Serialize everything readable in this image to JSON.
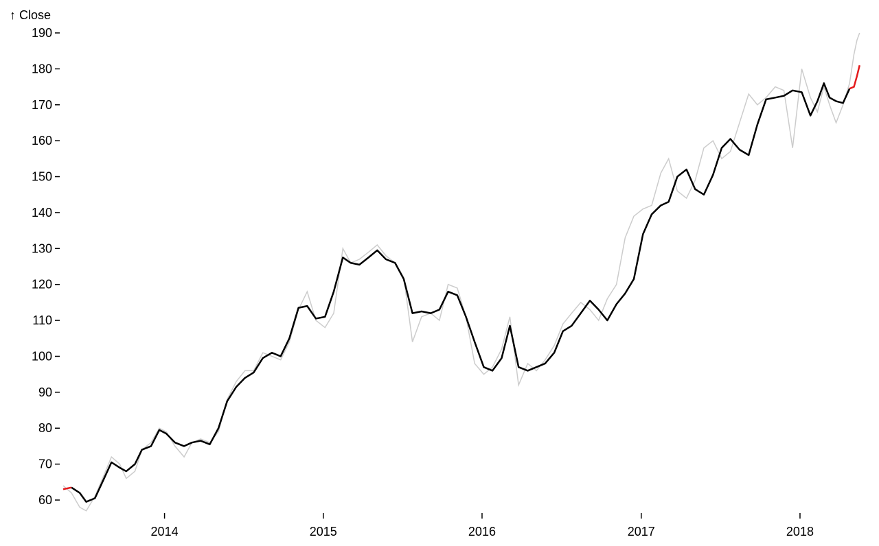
{
  "chart_data": {
    "type": "line",
    "ylabel": "↑ Close",
    "ylim": [
      57,
      190
    ],
    "xlim": [
      "2013-05-13",
      "2018-05-20"
    ],
    "y_ticks": [
      60,
      70,
      80,
      90,
      100,
      110,
      120,
      130,
      140,
      150,
      160,
      170,
      180,
      190
    ],
    "x_ticks": [
      "2014",
      "2015",
      "2016",
      "2017",
      "2018"
    ],
    "x_tick_dates": [
      "2014-01-01",
      "2015-01-01",
      "2016-01-01",
      "2017-01-01",
      "2018-01-01"
    ],
    "grid": false,
    "colors": {
      "raw": "#cccccc",
      "smoothed": "#000000",
      "edge": "#e41a1c"
    },
    "series": [
      {
        "role": "raw",
        "x": [
          "2013-05-13",
          "2013-06-01",
          "2013-06-20",
          "2013-07-05",
          "2013-07-25",
          "2013-08-15",
          "2013-09-01",
          "2013-09-20",
          "2013-10-05",
          "2013-10-25",
          "2013-11-10",
          "2013-12-01",
          "2013-12-20",
          "2014-01-05",
          "2014-01-25",
          "2014-02-15",
          "2014-03-05",
          "2014-03-25",
          "2014-04-15",
          "2014-05-05",
          "2014-05-25",
          "2014-06-15",
          "2014-07-05",
          "2014-07-25",
          "2014-08-15",
          "2014-09-05",
          "2014-09-25",
          "2014-10-15",
          "2014-11-05",
          "2014-11-25",
          "2014-12-15",
          "2015-01-05",
          "2015-01-25",
          "2015-02-15",
          "2015-03-05",
          "2015-03-25",
          "2015-04-15",
          "2015-05-05",
          "2015-05-25",
          "2015-06-15",
          "2015-07-05",
          "2015-07-25",
          "2015-08-15",
          "2015-09-05",
          "2015-09-25",
          "2015-10-15",
          "2015-11-05",
          "2015-11-25",
          "2015-12-15",
          "2016-01-05",
          "2016-01-25",
          "2016-02-15",
          "2016-03-05",
          "2016-03-25",
          "2016-04-15",
          "2016-05-05",
          "2016-05-25",
          "2016-06-15",
          "2016-07-05",
          "2016-07-25",
          "2016-08-15",
          "2016-09-05",
          "2016-09-25",
          "2016-10-15",
          "2016-11-05",
          "2016-11-25",
          "2016-12-15",
          "2017-01-05",
          "2017-01-25",
          "2017-02-15",
          "2017-03-05",
          "2017-03-25",
          "2017-04-15",
          "2017-05-05",
          "2017-05-25",
          "2017-06-15",
          "2017-07-05",
          "2017-07-25",
          "2017-08-15",
          "2017-09-05",
          "2017-09-25",
          "2017-10-15",
          "2017-11-05",
          "2017-11-25",
          "2017-12-15",
          "2018-01-05",
          "2018-01-25",
          "2018-02-10",
          "2018-02-25",
          "2018-03-10",
          "2018-03-25",
          "2018-04-10",
          "2018-04-25",
          "2018-05-05",
          "2018-05-12",
          "2018-05-18"
        ],
        "y": [
          64,
          62,
          58,
          57,
          61,
          67,
          72,
          70,
          66,
          68,
          74,
          76,
          80,
          79,
          75,
          72,
          76,
          77,
          76,
          79,
          88,
          93,
          96,
          96,
          101,
          100,
          99,
          104,
          113,
          118,
          110,
          108,
          112,
          130,
          126,
          127,
          129,
          131,
          128,
          126,
          122,
          104,
          111,
          112,
          110,
          120,
          119,
          111,
          98,
          95,
          97,
          102,
          111,
          92,
          98,
          96,
          99,
          103,
          109,
          112,
          115,
          113,
          110,
          116,
          120,
          133,
          139,
          141,
          142,
          151,
          155,
          146,
          144,
          149,
          158,
          160,
          155,
          157,
          165,
          173,
          170,
          172,
          175,
          174,
          158,
          180,
          172,
          168,
          175,
          170,
          165,
          170,
          176,
          184,
          188,
          190
        ]
      },
      {
        "role": "smoothed",
        "x": [
          "2013-05-13",
          "2013-06-01",
          "2013-06-20",
          "2013-07-05",
          "2013-07-25",
          "2013-08-15",
          "2013-09-01",
          "2013-09-20",
          "2013-10-05",
          "2013-10-25",
          "2013-11-10",
          "2013-12-01",
          "2013-12-20",
          "2014-01-05",
          "2014-01-25",
          "2014-02-15",
          "2014-03-05",
          "2014-03-25",
          "2014-04-15",
          "2014-05-05",
          "2014-05-25",
          "2014-06-15",
          "2014-07-05",
          "2014-07-25",
          "2014-08-15",
          "2014-09-05",
          "2014-09-25",
          "2014-10-15",
          "2014-11-05",
          "2014-11-25",
          "2014-12-15",
          "2015-01-05",
          "2015-01-25",
          "2015-02-15",
          "2015-03-05",
          "2015-03-25",
          "2015-04-15",
          "2015-05-05",
          "2015-05-25",
          "2015-06-15",
          "2015-07-05",
          "2015-07-25",
          "2015-08-15",
          "2015-09-05",
          "2015-09-25",
          "2015-10-15",
          "2015-11-05",
          "2015-11-25",
          "2015-12-15",
          "2016-01-05",
          "2016-01-25",
          "2016-02-15",
          "2016-03-05",
          "2016-03-25",
          "2016-04-15",
          "2016-05-05",
          "2016-05-25",
          "2016-06-15",
          "2016-07-05",
          "2016-07-25",
          "2016-08-15",
          "2016-09-05",
          "2016-09-25",
          "2016-10-15",
          "2016-11-05",
          "2016-11-25",
          "2016-12-15",
          "2017-01-05",
          "2017-01-25",
          "2017-02-15",
          "2017-03-05",
          "2017-03-25",
          "2017-04-15",
          "2017-05-05",
          "2017-05-25",
          "2017-06-15",
          "2017-07-05",
          "2017-07-25",
          "2017-08-15",
          "2017-09-05",
          "2017-09-25",
          "2017-10-15",
          "2017-11-05",
          "2017-11-25",
          "2017-12-15",
          "2018-01-05",
          "2018-01-25",
          "2018-02-10",
          "2018-02-25",
          "2018-03-10",
          "2018-03-25",
          "2018-04-10",
          "2018-04-25",
          "2018-05-05",
          "2018-05-12",
          "2018-05-18"
        ],
        "y": [
          63,
          63.5,
          62,
          59.5,
          60.5,
          66,
          70.5,
          69,
          68,
          70,
          74,
          75,
          79.5,
          78.5,
          76,
          75,
          76,
          76.5,
          75.5,
          80,
          87.5,
          91.5,
          94,
          95.5,
          99.5,
          101,
          100,
          105,
          113.5,
          114,
          110.5,
          111,
          118,
          127.5,
          126,
          125.5,
          127.5,
          129.5,
          127,
          126,
          121.5,
          112,
          112.5,
          112,
          113,
          118,
          117,
          111,
          104,
          97,
          96,
          99.5,
          108.5,
          97,
          96,
          97,
          98,
          101,
          107,
          108.5,
          112,
          115.5,
          113,
          110,
          114.5,
          117.5,
          121.5,
          134,
          139.5,
          142,
          143,
          150,
          152,
          146.5,
          145,
          150.5,
          158,
          160.5,
          157.5,
          156,
          164.5,
          171.5,
          172,
          172.5,
          174,
          173.5,
          167,
          171,
          176,
          172,
          171,
          170.5,
          174.5,
          175,
          178,
          181
        ]
      }
    ]
  }
}
